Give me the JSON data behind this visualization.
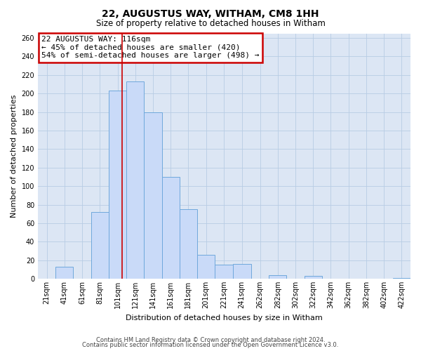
{
  "title": "22, AUGUSTUS WAY, WITHAM, CM8 1HH",
  "subtitle": "Size of property relative to detached houses in Witham",
  "xlabel": "Distribution of detached houses by size in Witham",
  "ylabel": "Number of detached properties",
  "bin_labels": [
    "21sqm",
    "41sqm",
    "61sqm",
    "81sqm",
    "101sqm",
    "121sqm",
    "141sqm",
    "161sqm",
    "181sqm",
    "201sqm",
    "221sqm",
    "241sqm",
    "262sqm",
    "282sqm",
    "302sqm",
    "322sqm",
    "342sqm",
    "362sqm",
    "382sqm",
    "402sqm",
    "422sqm"
  ],
  "bin_lefts": [
    21,
    41,
    61,
    81,
    101,
    121,
    141,
    161,
    181,
    201,
    221,
    241,
    262,
    282,
    302,
    322,
    342,
    362,
    382,
    402,
    422
  ],
  "bin_widths": [
    20,
    20,
    20,
    20,
    20,
    20,
    20,
    20,
    20,
    20,
    20,
    21,
    20,
    20,
    20,
    20,
    20,
    20,
    20,
    20,
    20
  ],
  "bar_heights": [
    0,
    13,
    0,
    72,
    203,
    213,
    180,
    110,
    75,
    26,
    15,
    16,
    0,
    4,
    0,
    3,
    0,
    0,
    0,
    0,
    1
  ],
  "bar_color": "#c9daf8",
  "bar_edge_color": "#6fa8dc",
  "property_value": 116,
  "vline_color": "#cc0000",
  "annotation_line1": "22 AUGUSTUS WAY: 116sqm",
  "annotation_line2": "← 45% of detached houses are smaller (420)",
  "annotation_line3": "54% of semi-detached houses are larger (498) →",
  "annotation_box_color": "#ffffff",
  "annotation_box_edge_color": "#cc0000",
  "ylim": [
    0,
    265
  ],
  "ytick_values": [
    0,
    20,
    40,
    60,
    80,
    100,
    120,
    140,
    160,
    180,
    200,
    220,
    240,
    260
  ],
  "footer_line1": "Contains HM Land Registry data © Crown copyright and database right 2024.",
  "footer_line2": "Contains public sector information licensed under the Open Government Licence v3.0.",
  "bg_color": "#ffffff",
  "plot_bg_color": "#dce6f4",
  "grid_color": "#b8cce4",
  "title_fontsize": 10,
  "subtitle_fontsize": 8.5,
  "annotation_fontsize": 8,
  "xlabel_fontsize": 8,
  "ylabel_fontsize": 8,
  "tick_fontsize": 7,
  "footer_fontsize": 6
}
